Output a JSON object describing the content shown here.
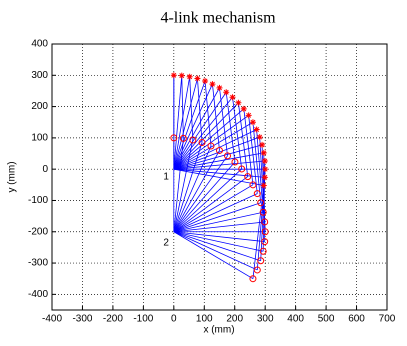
{
  "chart_data": {
    "type": "mechanism",
    "title": "4-link mechanism",
    "x_label": "x (mm)",
    "y_label": "y (mm)",
    "xlim": [
      -400,
      700
    ],
    "xticks": [
      -400,
      -300,
      -200,
      -100,
      0,
      100,
      200,
      300,
      400,
      500,
      600,
      700
    ],
    "ylim": [
      -450,
      400
    ],
    "yticks": [
      -400,
      -300,
      -200,
      -100,
      0,
      100,
      200,
      300,
      400
    ],
    "grid": true,
    "link_color": "#0000ff",
    "pivots": {
      "x": [
        0,
        0
      ],
      "y": [
        0,
        -200
      ]
    },
    "annotations": [
      {
        "text": "1",
        "x": -25,
        "y": -25
      },
      {
        "text": "2",
        "x": -25,
        "y": -235
      }
    ],
    "series": [
      {
        "marker": "star",
        "color": "#ff0000",
        "x": [
          0,
          26.1,
          52.1,
          77.6,
          102.6,
          126.8,
          150,
          172.1,
          192.8,
          212.1,
          229.8,
          245.7,
          259.8,
          271.9,
          281.9,
          289.8,
          295.4,
          298.9,
          300,
          298.9,
          295.4
        ],
        "y": [
          300,
          298.9,
          295.4,
          289.8,
          281.9,
          271.9,
          259.8,
          245.7,
          229.8,
          212.1,
          192.8,
          172.1,
          150,
          126.8,
          102.6,
          77.6,
          52.1,
          26.1,
          0,
          -26.1,
          -52.1
        ]
      },
      {
        "marker": "circle",
        "color": "#ff0000",
        "x": [
          0,
          31.4,
          62.4,
          92.7,
          122.0,
          150,
          176.3,
          200.7,
          222.9,
          242.7,
          259.8,
          274.1,
          285.3,
          293.4,
          298.4,
          300,
          298.4,
          293.4,
          285.3,
          274.1,
          259.8
        ],
        "y": [
          100,
          98.4,
          93.4,
          85.3,
          74.1,
          59.8,
          42.7,
          22.9,
          0.7,
          -23.7,
          -50,
          -78.0,
          -107.3,
          -137.6,
          -168.6,
          -200,
          -231.4,
          -262.4,
          -292.7,
          -322.0,
          -350
        ]
      }
    ]
  }
}
